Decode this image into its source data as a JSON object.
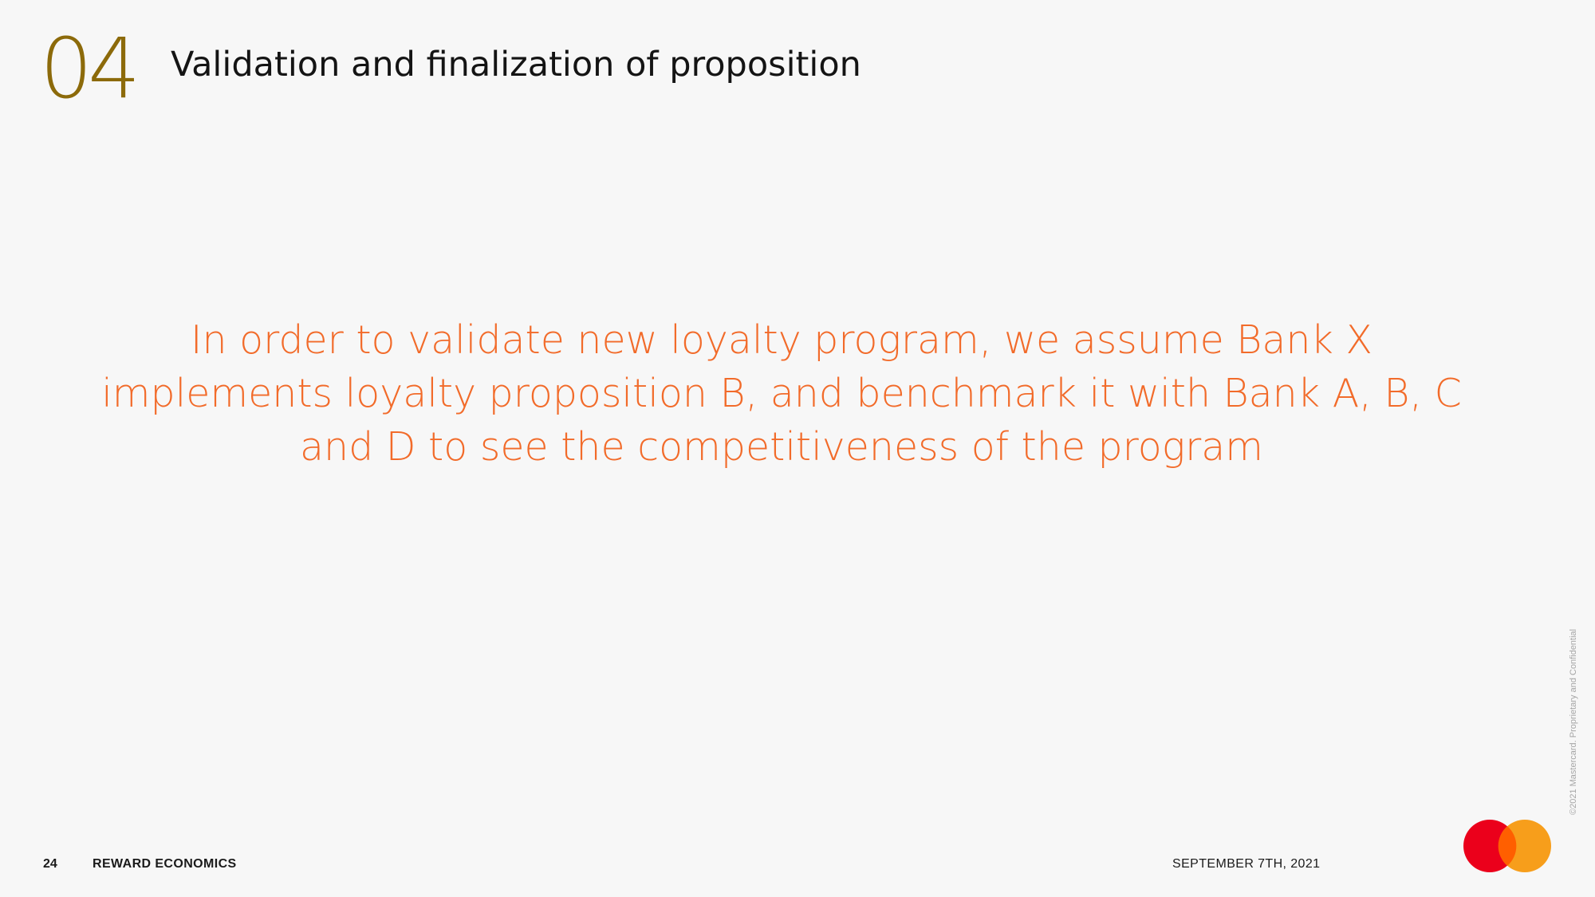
{
  "header": {
    "section_number": "04",
    "title": "Validation and finalization of proposition"
  },
  "main": {
    "statement": "In order to validate new loyalty program, we assume Bank X implements loyalty proposition B, and benchmark it with Bank A, B, C and D to see the competitiveness of the program"
  },
  "footer": {
    "page_number": "24",
    "section_label": "REWARD ECONOMICS",
    "date": "SEPTEMBER 7TH, 2021"
  },
  "side_note": "©2021 Mastercard. Proprietary and Confidential",
  "logo": {
    "icon": "mastercard-logo",
    "colors": {
      "left": "#eb001b",
      "right": "#f79e1b",
      "overlap": "#ff5f00"
    }
  },
  "colors": {
    "accent_number": "#8c6a0a",
    "statement_text": "#f26b2a",
    "background": "#f7f7f7"
  }
}
